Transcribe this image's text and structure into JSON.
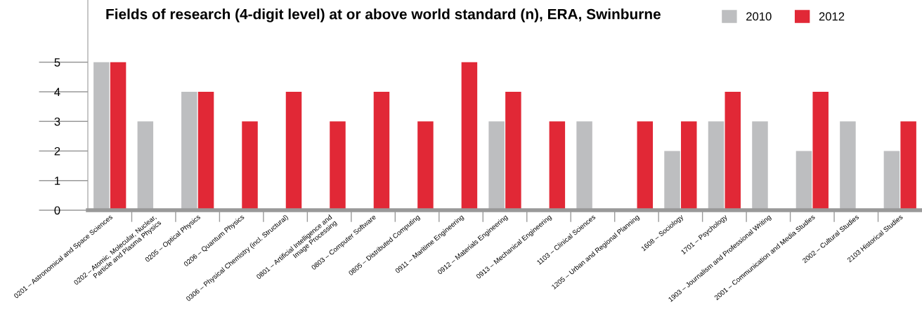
{
  "chart_data": {
    "type": "bar",
    "title": "Fields of research (4-digit level) at or above world standard (n), ERA, Swinburne",
    "categories": [
      "0201 – Astronomical and Space Sciences",
      "0202 – Atomic, Molecular, Nuclear,\nParticle and Plasma Physics",
      "0205 – Optical Physics",
      "0206 – Quantum Physics",
      "0306 – Physical Chemistry (incl. Structural)",
      "0801 – Artificial Intelligence and\nImage Processing",
      "0803 – Computer Software",
      "0805 – Distributed Computing",
      "0911 – Maritime Engineering",
      "0912 – Materials Engineering",
      "0913 – Mechanical Engineering",
      "1103 – Clinical Sciences",
      "1205 – Urban and Regional Planning",
      "1608 – Sociology",
      "1701 – Psychology",
      "1903 – Journalism and Professional Writing",
      "2001 – Communication and Media Studies",
      "2002 – Cultural Studies",
      "2103 Historical Studies"
    ],
    "series": [
      {
        "name": "2010",
        "color": "#bdbec0",
        "values": [
          5,
          3,
          4,
          null,
          null,
          null,
          null,
          null,
          null,
          3,
          null,
          3,
          null,
          2,
          3,
          3,
          2,
          3,
          2
        ]
      },
      {
        "name": "2012",
        "color": "#e12836",
        "values": [
          5,
          null,
          4,
          3,
          4,
          3,
          4,
          3,
          5,
          4,
          3,
          null,
          3,
          3,
          4,
          null,
          4,
          null,
          3
        ]
      }
    ],
    "ylim": [
      0,
      7.1
    ],
    "yticks": [
      0,
      1,
      2,
      3,
      4,
      5
    ],
    "legend": "top right",
    "grid": false
  }
}
